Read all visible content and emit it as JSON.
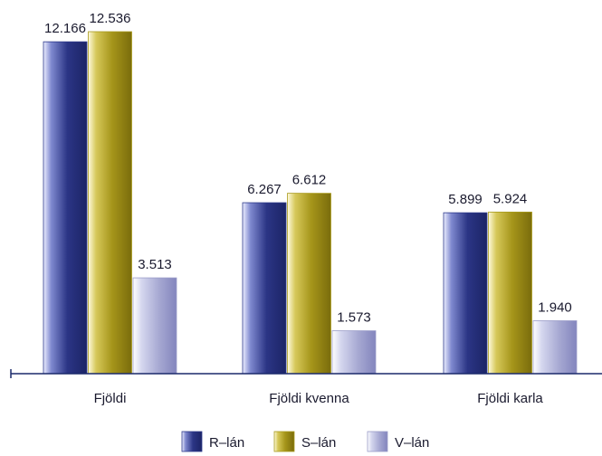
{
  "chart_data": {
    "type": "bar",
    "categories": [
      "Fjöldi",
      "Fjöldi kvenna",
      "Fjöldi karla"
    ],
    "series": [
      {
        "name": "R–lán",
        "values": [
          12166,
          6267,
          5899
        ],
        "labels": [
          "12.166",
          "6.267",
          "5.899"
        ],
        "color": "#2e3a8c"
      },
      {
        "name": "S–lán",
        "values": [
          12536,
          6612,
          5924
        ],
        "labels": [
          "12.536",
          "6.612",
          "5.924"
        ],
        "color": "#a89a1c"
      },
      {
        "name": "V–lán",
        "values": [
          3513,
          1573,
          1940
        ],
        "labels": [
          "3.513",
          "1.573",
          "1.940"
        ],
        "color": "#9a9cc8"
      }
    ],
    "ylim": [
      0,
      13000
    ],
    "grid": false,
    "legend": "bottom-center"
  }
}
